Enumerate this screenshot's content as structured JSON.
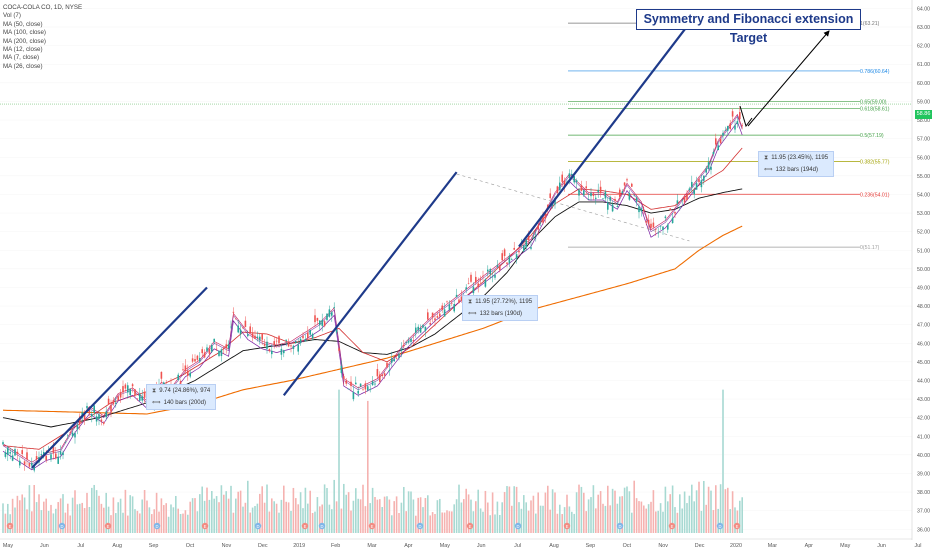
{
  "legend": {
    "lines": [
      "COCA-COLA CO, 1D, NYSE",
      "Vol (7)",
      "MA (50, close)",
      "MA (100, close)",
      "MA (200, close)",
      "MA (12, close)",
      "MA (7, close)",
      "MA (26, close)"
    ]
  },
  "annotation_title": "Symmetry and Fibonacci extension Target",
  "measure_boxes": [
    {
      "line1": "9.74 (24.86%), 974",
      "line2": "140 bars (200d)"
    },
    {
      "line1": "11.95 (27.72%), 1195",
      "line2": "132 bars (190d)"
    },
    {
      "line1": "11.95 (23.45%), 1195",
      "line2": "132 bars (194d)"
    }
  ],
  "last_price_label": "58.86",
  "colors": {
    "up": "#26a69a",
    "down": "#ef5350",
    "trendline": "#1e3a8a",
    "ma50": "#7b1fa2",
    "ma100": "#d32f2f",
    "ma200": "#ef6c00",
    "ma12": "#c2185b",
    "ma7": "#6a1b9a",
    "ma26": "#111111"
  },
  "chart_data": {
    "type": "candlestick",
    "symbol": "COCA-COLA CO",
    "interval": "1D",
    "exchange": "NYSE",
    "x_ticks": [
      "May",
      "Jun",
      "Jul",
      "Aug",
      "Sep",
      "Oct",
      "Nov",
      "Dec",
      "2019",
      "Feb",
      "Mar",
      "Apr",
      "May",
      "Jun",
      "Jul",
      "Aug",
      "Sep",
      "Oct",
      "Nov",
      "Dec",
      "2020",
      "Mar",
      "Apr",
      "May",
      "Jun",
      "Jul"
    ],
    "y_ticks": [
      36,
      37,
      38,
      39,
      40,
      41,
      42,
      43,
      44,
      45,
      46,
      47,
      48,
      49,
      50,
      51,
      52,
      53,
      54,
      55,
      56,
      57,
      58,
      59,
      60,
      61,
      62,
      63,
      64
    ],
    "ylim": [
      35.8,
      64.4
    ],
    "price_path": [
      [
        0,
        40.5
      ],
      [
        6,
        40
      ],
      [
        12,
        39.5
      ],
      [
        18,
        40
      ],
      [
        24,
        40.2
      ],
      [
        30,
        41.5
      ],
      [
        36,
        42.5
      ],
      [
        42,
        42
      ],
      [
        48,
        43.2
      ],
      [
        54,
        43.5
      ],
      [
        60,
        42.8
      ],
      [
        66,
        43.8
      ],
      [
        70,
        43.5
      ],
      [
        76,
        44.5
      ],
      [
        82,
        45
      ],
      [
        88,
        46
      ],
      [
        94,
        45.6
      ],
      [
        96,
        47.5
      ],
      [
        102,
        46.5
      ],
      [
        108,
        46
      ],
      [
        114,
        45.8
      ],
      [
        120,
        46
      ],
      [
        126,
        46.5
      ],
      [
        132,
        47
      ],
      [
        138,
        47.8
      ],
      [
        142,
        44
      ],
      [
        148,
        43.5
      ],
      [
        156,
        44
      ],
      [
        162,
        45
      ],
      [
        168,
        46
      ],
      [
        172,
        46.5
      ],
      [
        180,
        47.5
      ],
      [
        190,
        48.5
      ],
      [
        200,
        49.5
      ],
      [
        210,
        50.5
      ],
      [
        220,
        51.5
      ],
      [
        226,
        53
      ],
      [
        230,
        54
      ],
      [
        236,
        55
      ],
      [
        240,
        54.5
      ],
      [
        244,
        54
      ],
      [
        250,
        54
      ],
      [
        256,
        53.5
      ],
      [
        260,
        54.5
      ],
      [
        266,
        53.5
      ],
      [
        270,
        52
      ],
      [
        276,
        52.5
      ],
      [
        282,
        53.5
      ],
      [
        288,
        54.5
      ],
      [
        294,
        55.5
      ],
      [
        298,
        56.8
      ],
      [
        302,
        57.5
      ],
      [
        306,
        58.2
      ],
      [
        308,
        57.5
      ]
    ],
    "volume_path": [
      [
        0,
        2.2
      ],
      [
        10,
        2.5
      ],
      [
        20,
        2.4
      ],
      [
        30,
        2.2
      ],
      [
        40,
        2.6
      ],
      [
        50,
        2.3
      ],
      [
        60,
        2.4
      ],
      [
        70,
        2.2
      ],
      [
        80,
        2.5
      ],
      [
        90,
        2.4
      ],
      [
        100,
        2.7
      ],
      [
        110,
        2.6
      ],
      [
        120,
        2.5
      ],
      [
        130,
        2.4
      ],
      [
        140,
        2.8
      ],
      [
        150,
        2.6
      ],
      [
        160,
        2.5
      ],
      [
        170,
        2.3
      ],
      [
        180,
        2.4
      ],
      [
        190,
        2.6
      ],
      [
        200,
        2.5
      ],
      [
        210,
        2.4
      ],
      [
        220,
        2.7
      ],
      [
        230,
        2.6
      ],
      [
        240,
        2.5
      ],
      [
        250,
        2.4
      ],
      [
        260,
        2.6
      ],
      [
        270,
        2.7
      ],
      [
        280,
        2.5
      ],
      [
        290,
        2.6
      ],
      [
        300,
        2.8
      ],
      [
        308,
        2.5
      ]
    ],
    "ma200_path": [
      [
        0,
        42.4
      ],
      [
        30,
        42.3
      ],
      [
        60,
        42.2
      ],
      [
        80,
        42.7
      ],
      [
        100,
        43.5
      ],
      [
        120,
        44
      ],
      [
        140,
        44.6
      ],
      [
        160,
        45.2
      ],
      [
        180,
        46
      ],
      [
        200,
        46.8
      ],
      [
        220,
        47.8
      ],
      [
        240,
        48.5
      ],
      [
        260,
        49.2
      ],
      [
        280,
        50
      ],
      [
        290,
        51
      ],
      [
        300,
        51.8
      ],
      [
        308,
        52.3
      ]
    ],
    "ma100_path": [
      [
        0,
        42
      ],
      [
        20,
        41.5
      ],
      [
        40,
        42
      ],
      [
        60,
        42.8
      ],
      [
        80,
        44
      ],
      [
        100,
        45.6
      ],
      [
        120,
        46
      ],
      [
        130,
        46.2
      ],
      [
        140,
        46.1
      ],
      [
        150,
        45.5
      ],
      [
        160,
        45.4
      ],
      [
        170,
        45.8
      ],
      [
        180,
        46.5
      ],
      [
        190,
        47.5
      ],
      [
        200,
        48.5
      ],
      [
        210,
        49.8
      ],
      [
        220,
        51.5
      ],
      [
        230,
        52.8
      ],
      [
        240,
        53.6
      ],
      [
        250,
        53.6
      ],
      [
        260,
        53.4
      ],
      [
        270,
        53
      ],
      [
        280,
        53.2
      ],
      [
        290,
        53.8
      ],
      [
        300,
        54.1
      ],
      [
        308,
        54.3
      ]
    ],
    "ma50_path": [
      [
        0,
        40.5
      ],
      [
        15,
        40.3
      ],
      [
        30,
        41.5
      ],
      [
        45,
        42.8
      ],
      [
        60,
        43.4
      ],
      [
        75,
        44.3
      ],
      [
        90,
        45.5
      ],
      [
        100,
        46.6
      ],
      [
        110,
        46.5
      ],
      [
        120,
        46
      ],
      [
        130,
        46.3
      ],
      [
        140,
        46.8
      ],
      [
        150,
        45.5
      ],
      [
        160,
        45
      ],
      [
        170,
        45.8
      ],
      [
        180,
        47
      ],
      [
        190,
        48.2
      ],
      [
        200,
        49.3
      ],
      [
        210,
        50.5
      ],
      [
        220,
        51.8
      ],
      [
        230,
        53.5
      ],
      [
        240,
        54.3
      ],
      [
        250,
        54.2
      ],
      [
        260,
        54
      ],
      [
        270,
        53.2
      ],
      [
        280,
        53.4
      ],
      [
        290,
        54.5
      ],
      [
        300,
        55.3
      ],
      [
        306,
        56.2
      ],
      [
        308,
        56.5
      ]
    ],
    "trendlines": [
      {
        "from": [
          12,
          39.3
        ],
        "to": [
          85,
          49
        ]
      },
      {
        "from": [
          117,
          43.2
        ],
        "to": [
          189,
          55.2
        ]
      },
      {
        "from": [
          215,
          51.2
        ],
        "to": [
          286,
          63.2
        ]
      }
    ],
    "dashed_line": {
      "from": [
        189,
        55.1
      ],
      "to": [
        286,
        51.5
      ]
    },
    "fib_levels": [
      {
        "label": "0(51.17)",
        "price": 51.17,
        "color": "#9e9e9e"
      },
      {
        "label": "0.236(54.01)",
        "price": 54.01,
        "color": "#e53935"
      },
      {
        "label": "0.382(55.77)",
        "price": 55.77,
        "color": "#a0a000"
      },
      {
        "label": "0.5(57.19)",
        "price": 57.19,
        "color": "#43a047"
      },
      {
        "label": "0.618(58.61)",
        "price": 58.61,
        "color": "#43a047"
      },
      {
        "label": "0.65(59.00)",
        "price": 59.0,
        "color": "#43a047"
      },
      {
        "label": "0.786(60.64)",
        "price": 60.64,
        "color": "#1e88e5"
      },
      {
        "label": "1(63.21)",
        "price": 63.21,
        "color": "#757575"
      }
    ],
    "last_price": 58.86
  }
}
